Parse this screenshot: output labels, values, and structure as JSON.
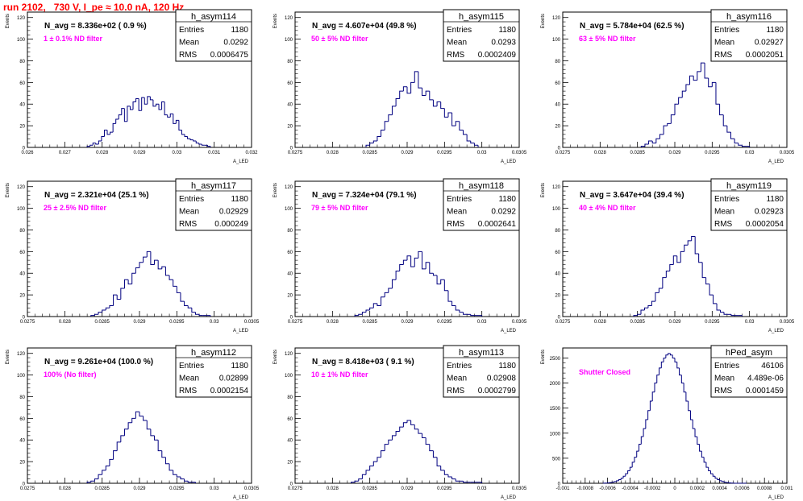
{
  "canvas_title": "run 2102,   730 V, I_pe ≈ 10.0 nA, 120 Hz",
  "colors": {
    "title": "#ff0000",
    "annotation": "#ff00ff",
    "hist_line": "#000080",
    "axes": "#000000"
  },
  "stats_labels": {
    "entries": "Entries",
    "mean": "Mean",
    "rms": "RMS"
  },
  "chart_data": [
    {
      "type": "bar",
      "name": "h_asym114",
      "navg_label": "N_avg = 8.336e+02 ( 0.9 %)",
      "annotation": "1 ± 0.1% ND filter",
      "ylabel": "Events",
      "xlabel": "A_LED",
      "xlim": [
        0.026,
        0.032
      ],
      "ylim": [
        0,
        125
      ],
      "xticks": [
        "0.026",
        "0.027",
        "0.028",
        "0.029",
        "0.03",
        "0.031",
        "0.032"
      ],
      "xtick_values": [
        0.026,
        0.027,
        0.028,
        0.029,
        0.03,
        0.031,
        0.032
      ],
      "yticks": [
        "0",
        "20",
        "40",
        "60",
        "80",
        "100",
        "120"
      ],
      "ytick_values": [
        0,
        20,
        40,
        60,
        80,
        100,
        120
      ],
      "stats": {
        "entries": "1180",
        "mean": "0.0292",
        "rms": "0.0006475"
      },
      "bin_range": [
        0.0276,
        0.0309
      ],
      "counts": [
        1,
        2,
        4,
        3,
        6,
        10,
        16,
        12,
        14,
        22,
        26,
        30,
        36,
        24,
        38,
        35,
        42,
        45,
        34,
        46,
        40,
        47,
        44,
        38,
        40,
        35,
        42,
        30,
        28,
        31,
        22,
        25,
        16,
        12,
        10,
        8,
        7,
        6,
        4,
        3,
        2,
        2,
        1
      ]
    },
    {
      "type": "bar",
      "name": "h_asym115",
      "navg_label": "N_avg = 4.607e+04 (49.8 %)",
      "annotation": "50 ± 5% ND filter",
      "ylabel": "Events",
      "xlabel": "A_LED",
      "xlim": [
        0.0275,
        0.0305
      ],
      "ylim": [
        0,
        125
      ],
      "xticks": [
        "0.0275",
        "0.028",
        "0.0285",
        "0.029",
        "0.0295",
        "0.03",
        "0.0305"
      ],
      "xtick_values": [
        0.0275,
        0.028,
        0.0285,
        0.029,
        0.0295,
        0.03,
        0.0305
      ],
      "yticks": [
        "0",
        "20",
        "40",
        "60",
        "80",
        "100",
        "120"
      ],
      "ytick_values": [
        0,
        20,
        40,
        60,
        80,
        100,
        120
      ],
      "stats": {
        "entries": "1180",
        "mean": "0.0293",
        "rms": "0.0002409"
      },
      "bin_range": [
        0.02845,
        0.02995
      ],
      "counts": [
        2,
        4,
        6,
        10,
        16,
        24,
        30,
        38,
        45,
        52,
        56,
        50,
        60,
        70,
        55,
        48,
        52,
        44,
        38,
        42,
        36,
        28,
        32,
        20,
        24,
        16,
        12,
        6,
        4,
        2
      ]
    },
    {
      "type": "bar",
      "name": "h_asym116",
      "navg_label": "N_avg = 5.784e+04 (62.5 %)",
      "annotation": "63 ± 5% ND filter",
      "ylabel": "Events",
      "xlabel": "A_LED",
      "xlim": [
        0.0275,
        0.0305
      ],
      "ylim": [
        0,
        125
      ],
      "xticks": [
        "0.0275",
        "0.028",
        "0.0285",
        "0.029",
        "0.0295",
        "0.03",
        "0.0305"
      ],
      "xtick_values": [
        0.0275,
        0.028,
        0.0285,
        0.029,
        0.0295,
        0.03,
        0.0305
      ],
      "yticks": [
        "0",
        "20",
        "40",
        "60",
        "80",
        "100",
        "120"
      ],
      "ytick_values": [
        0,
        20,
        40,
        60,
        80,
        100,
        120
      ],
      "stats": {
        "entries": "1180",
        "mean": "0.02927",
        "rms": "0.0002051"
      },
      "bin_range": [
        0.02855,
        0.03
      ],
      "counts": [
        1,
        3,
        6,
        4,
        8,
        12,
        20,
        22,
        30,
        40,
        46,
        52,
        58,
        66,
        62,
        70,
        78,
        64,
        56,
        60,
        40,
        30,
        20,
        14,
        8,
        4,
        2,
        1,
        1
      ]
    },
    {
      "type": "bar",
      "name": "h_asym117",
      "navg_label": "N_avg = 2.321e+04 (25.1 %)",
      "annotation": "25 ± 2.5% ND filter",
      "ylabel": "Events",
      "xlabel": "A_LED",
      "xlim": [
        0.0275,
        0.0305
      ],
      "ylim": [
        0,
        125
      ],
      "xticks": [
        "0.0275",
        "0.028",
        "0.0285",
        "0.029",
        "0.0295",
        "0.03",
        "0.0305"
      ],
      "xtick_values": [
        0.0275,
        0.028,
        0.0285,
        0.029,
        0.0295,
        0.03,
        0.0305
      ],
      "yticks": [
        "0",
        "20",
        "40",
        "60",
        "80",
        "100",
        "120"
      ],
      "ytick_values": [
        0,
        20,
        40,
        60,
        80,
        100,
        120
      ],
      "stats": {
        "entries": "1180",
        "mean": "0.02929",
        "rms": "0.000249"
      },
      "bin_range": [
        0.02835,
        0.02995
      ],
      "counts": [
        1,
        2,
        4,
        6,
        8,
        10,
        20,
        16,
        26,
        34,
        30,
        40,
        45,
        50,
        55,
        60,
        48,
        52,
        44,
        46,
        38,
        34,
        28,
        22,
        14,
        10,
        8,
        4,
        2,
        1,
        1,
        1
      ]
    },
    {
      "type": "bar",
      "name": "h_asym118",
      "navg_label": "N_avg = 7.324e+04 (79.1 %)",
      "annotation": "79 ± 5% ND filter",
      "ylabel": "Events",
      "xlabel": "A_LED",
      "xlim": [
        0.0275,
        0.0305
      ],
      "ylim": [
        0,
        125
      ],
      "xticks": [
        "0.0275",
        "0.028",
        "0.0285",
        "0.029",
        "0.0295",
        "0.03",
        "0.0305"
      ],
      "xtick_values": [
        0.0275,
        0.028,
        0.0285,
        0.029,
        0.0295,
        0.03,
        0.0305
      ],
      "yticks": [
        "0",
        "20",
        "40",
        "60",
        "80",
        "100",
        "120"
      ],
      "ytick_values": [
        0,
        20,
        40,
        60,
        80,
        100,
        120
      ],
      "stats": {
        "entries": "1180",
        "mean": "0.0292",
        "rms": "0.0002641"
      },
      "bin_range": [
        0.0283,
        0.03
      ],
      "counts": [
        1,
        2,
        4,
        6,
        8,
        12,
        10,
        18,
        22,
        26,
        34,
        42,
        48,
        52,
        56,
        46,
        54,
        60,
        44,
        50,
        40,
        38,
        30,
        34,
        24,
        14,
        10,
        6,
        4,
        2,
        2,
        1,
        1,
        1
      ]
    },
    {
      "type": "bar",
      "name": "h_asym119",
      "navg_label": "N_avg = 3.647e+04 (39.4 %)",
      "annotation": "40 ± 4% ND filter",
      "ylabel": "Events",
      "xlabel": "A_LED",
      "xlim": [
        0.0275,
        0.0305
      ],
      "ylim": [
        0,
        125
      ],
      "xticks": [
        "0.0275",
        "0.028",
        "0.0285",
        "0.029",
        "0.0295",
        "0.03",
        "0.0305"
      ],
      "xtick_values": [
        0.0275,
        0.028,
        0.0285,
        0.029,
        0.0295,
        0.03,
        0.0305
      ],
      "yticks": [
        "0",
        "20",
        "40",
        "60",
        "80",
        "100",
        "120"
      ],
      "ytick_values": [
        0,
        20,
        40,
        60,
        80,
        100,
        120
      ],
      "stats": {
        "entries": "1180",
        "mean": "0.02923",
        "rms": "0.0002054"
      },
      "bin_range": [
        0.02845,
        0.0299
      ],
      "counts": [
        1,
        2,
        6,
        8,
        10,
        14,
        22,
        26,
        36,
        42,
        48,
        56,
        50,
        60,
        66,
        70,
        74,
        58,
        50,
        36,
        30,
        20,
        12,
        6,
        4,
        2,
        2,
        1,
        1,
        1
      ]
    },
    {
      "type": "bar",
      "name": "h_asym112",
      "navg_label": "N_avg = 9.261e+04 (100.0 %)",
      "annotation": "100% (No filter)",
      "ylabel": "Events",
      "xlabel": "A_LED",
      "xlim": [
        0.0275,
        0.0305
      ],
      "ylim": [
        0,
        125
      ],
      "xticks": [
        "0.0275",
        "0.028",
        "0.0285",
        "0.029",
        "0.0295",
        "0.03",
        "0.0305"
      ],
      "xtick_values": [
        0.0275,
        0.028,
        0.0285,
        0.029,
        0.0295,
        0.03,
        0.0305
      ],
      "yticks": [
        "0",
        "20",
        "40",
        "60",
        "80",
        "100",
        "120"
      ],
      "ytick_values": [
        0,
        20,
        40,
        60,
        80,
        100,
        120
      ],
      "stats": {
        "entries": "1180",
        "mean": "0.02899",
        "rms": "0.0002154"
      },
      "bin_range": [
        0.0283,
        0.02975
      ],
      "counts": [
        1,
        2,
        4,
        8,
        12,
        16,
        22,
        30,
        38,
        44,
        50,
        56,
        60,
        66,
        62,
        58,
        50,
        44,
        40,
        30,
        24,
        18,
        12,
        8,
        6,
        4,
        2,
        1,
        1
      ]
    },
    {
      "type": "bar",
      "name": "h_asym113",
      "navg_label": "N_avg = 8.418e+03 ( 9.1 %)",
      "annotation": "10 ± 1% ND filter",
      "ylabel": "Events",
      "xlabel": "A_LED",
      "xlim": [
        0.0275,
        0.0305
      ],
      "ylim": [
        0,
        125
      ],
      "xticks": [
        "0.0275",
        "0.028",
        "0.0285",
        "0.029",
        "0.0295",
        "0.03",
        "0.0305"
      ],
      "xtick_values": [
        0.0275,
        0.028,
        0.0285,
        0.029,
        0.0295,
        0.03,
        0.0305
      ],
      "yticks": [
        "0",
        "20",
        "40",
        "60",
        "80",
        "100",
        "120"
      ],
      "ytick_values": [
        0,
        20,
        40,
        60,
        80,
        100,
        120
      ],
      "stats": {
        "entries": "1180",
        "mean": "0.02908",
        "rms": "0.0002799"
      },
      "bin_range": [
        0.02825,
        0.03
      ],
      "counts": [
        1,
        2,
        4,
        8,
        12,
        16,
        20,
        24,
        30,
        36,
        40,
        44,
        48,
        52,
        56,
        58,
        54,
        50,
        46,
        42,
        36,
        30,
        24,
        16,
        12,
        8,
        6,
        4,
        2,
        2,
        1,
        1,
        1,
        1,
        1
      ]
    },
    {
      "type": "bar",
      "name": "hPed_asym",
      "navg_label": "",
      "annotation": "Shutter Closed",
      "ylabel": "Events",
      "xlabel": "A_LED",
      "xlim": [
        -0.001,
        0.001
      ],
      "ylim": [
        0,
        2700
      ],
      "xticks": [
        "-0.001",
        "-0.0008",
        "-0.0006",
        "-0.0004",
        "-0.0002",
        "0",
        "0.0002",
        "0.0004",
        "0.0006",
        "0.0008",
        "0.001"
      ],
      "xtick_values": [
        -0.001,
        -0.0008,
        -0.0006,
        -0.0004,
        -0.0002,
        0,
        0.0002,
        0.0004,
        0.0006,
        0.0008,
        0.001
      ],
      "yticks": [
        "0",
        "500",
        "1000",
        "1500",
        "2000",
        "2500"
      ],
      "ytick_values": [
        0,
        500,
        1000,
        1500,
        2000,
        2500
      ],
      "stats": {
        "entries": "46106",
        "mean": "4.489e-06",
        "rms": "0.0001459"
      },
      "bin_range": [
        -0.00064,
        0.00064
      ],
      "counts": [
        2,
        4,
        8,
        14,
        22,
        34,
        50,
        72,
        100,
        140,
        190,
        250,
        320,
        420,
        520,
        640,
        780,
        930,
        1090,
        1270,
        1450,
        1640,
        1820,
        2000,
        2160,
        2300,
        2420,
        2500,
        2560,
        2590,
        2560,
        2500,
        2420,
        2300,
        2160,
        2000,
        1820,
        1640,
        1450,
        1270,
        1090,
        930,
        780,
        640,
        520,
        420,
        320,
        250,
        190,
        140,
        100,
        72,
        50,
        34,
        22,
        14,
        8,
        4,
        2,
        1,
        1,
        1,
        1,
        1
      ]
    }
  ]
}
